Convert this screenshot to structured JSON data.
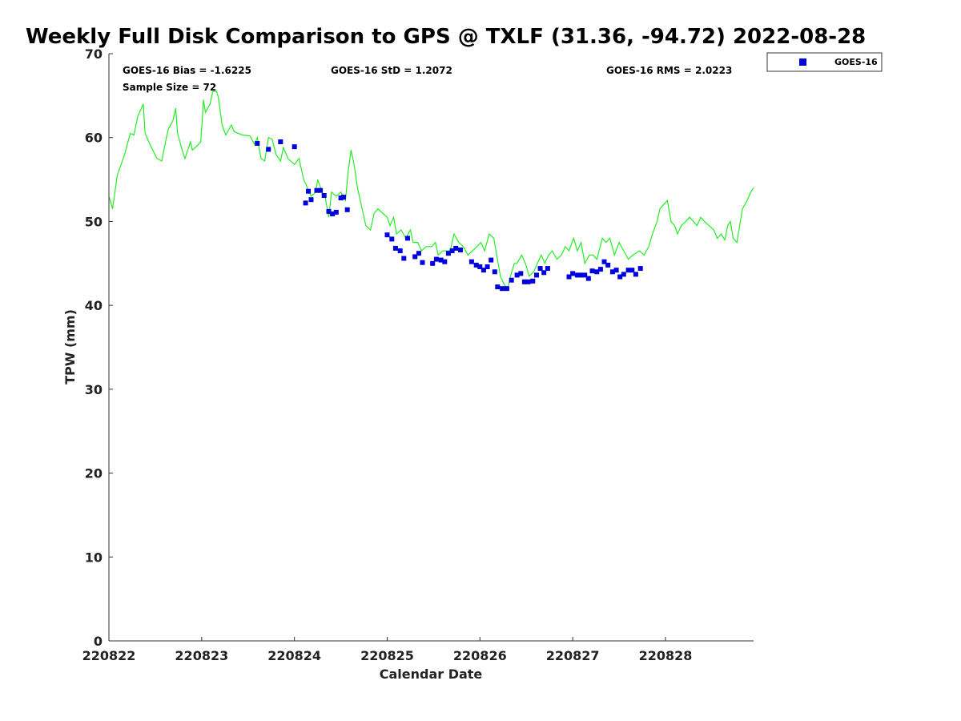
{
  "chart_data": {
    "type": "line+scatter",
    "title": "Weekly Full Disk Comparison to GPS @ TXLF (31.36, -94.72) 2022-08-28",
    "xlabel": "Calendar Date",
    "ylabel": "TPW (mm)",
    "xlim": [
      0,
      6.95
    ],
    "ylim": [
      0,
      70
    ],
    "x_ticks": [
      {
        "pos": 0,
        "label": "220822"
      },
      {
        "pos": 1,
        "label": "220823"
      },
      {
        "pos": 2,
        "label": "220824"
      },
      {
        "pos": 3,
        "label": "220825"
      },
      {
        "pos": 4,
        "label": "220826"
      },
      {
        "pos": 5,
        "label": "220827"
      },
      {
        "pos": 6,
        "label": "220828"
      }
    ],
    "y_ticks": [
      "0",
      "10",
      "20",
      "30",
      "40",
      "50",
      "60",
      "70"
    ],
    "grid": false,
    "legend_position": "outside-top-right",
    "stats": {
      "bias": "GOES-16 Bias = -1.6225",
      "std": "GOES-16 StD = 1.2072",
      "rms": "GOES-16 RMS = 2.0223",
      "sample": "Sample Size = 72"
    },
    "series": [
      {
        "kind": "line",
        "color": "#22ee22",
        "points": [
          [
            0.0,
            53.0
          ],
          [
            0.04,
            51.5
          ],
          [
            0.09,
            55.5
          ],
          [
            0.17,
            58.0
          ],
          [
            0.23,
            60.5
          ],
          [
            0.27,
            60.3
          ],
          [
            0.31,
            62.5
          ],
          [
            0.37,
            64.0
          ],
          [
            0.39,
            60.5
          ],
          [
            0.45,
            59.0
          ],
          [
            0.52,
            57.5
          ],
          [
            0.57,
            57.2
          ],
          [
            0.61,
            59.5
          ],
          [
            0.64,
            61.0
          ],
          [
            0.69,
            62.0
          ],
          [
            0.72,
            63.5
          ],
          [
            0.74,
            60.5
          ],
          [
            0.79,
            58.5
          ],
          [
            0.82,
            57.5
          ],
          [
            0.88,
            59.5
          ],
          [
            0.9,
            58.5
          ],
          [
            0.95,
            59.0
          ],
          [
            0.99,
            59.5
          ],
          [
            1.02,
            64.5
          ],
          [
            1.04,
            63.0
          ],
          [
            1.09,
            64.0
          ],
          [
            1.12,
            65.5
          ],
          [
            1.16,
            65.5
          ],
          [
            1.18,
            64.8
          ],
          [
            1.22,
            61.5
          ],
          [
            1.26,
            60.3
          ],
          [
            1.32,
            61.5
          ],
          [
            1.35,
            60.7
          ],
          [
            1.44,
            60.3
          ],
          [
            1.52,
            60.2
          ],
          [
            1.57,
            59.2
          ],
          [
            1.6,
            60.0
          ],
          [
            1.64,
            57.5
          ],
          [
            1.68,
            57.2
          ],
          [
            1.72,
            60.0
          ],
          [
            1.76,
            59.8
          ],
          [
            1.8,
            58.0
          ],
          [
            1.85,
            57.2
          ],
          [
            1.88,
            58.8
          ],
          [
            1.93,
            57.5
          ],
          [
            2.0,
            56.8
          ],
          [
            2.05,
            57.5
          ],
          [
            2.1,
            55.0
          ],
          [
            2.14,
            54.0
          ],
          [
            2.18,
            53.0
          ],
          [
            2.23,
            53.5
          ],
          [
            2.25,
            55.0
          ],
          [
            2.3,
            53.5
          ],
          [
            2.33,
            53.0
          ],
          [
            2.37,
            50.5
          ],
          [
            2.4,
            53.5
          ],
          [
            2.45,
            53.0
          ],
          [
            2.5,
            53.5
          ],
          [
            2.55,
            52.5
          ],
          [
            2.58,
            56.0
          ],
          [
            2.61,
            58.5
          ],
          [
            2.64,
            57.0
          ],
          [
            2.68,
            54.0
          ],
          [
            2.72,
            52.0
          ],
          [
            2.77,
            49.5
          ],
          [
            2.82,
            49.0
          ],
          [
            2.86,
            51.0
          ],
          [
            2.9,
            51.5
          ],
          [
            2.95,
            51.0
          ],
          [
            3.0,
            50.5
          ],
          [
            3.03,
            49.5
          ],
          [
            3.07,
            50.5
          ],
          [
            3.1,
            48.5
          ],
          [
            3.15,
            49.0
          ],
          [
            3.2,
            48.0
          ],
          [
            3.25,
            49.0
          ],
          [
            3.28,
            47.5
          ],
          [
            3.33,
            47.5
          ],
          [
            3.37,
            46.5
          ],
          [
            3.42,
            47.0
          ],
          [
            3.48,
            47.0
          ],
          [
            3.52,
            47.5
          ],
          [
            3.55,
            46.0
          ],
          [
            3.6,
            46.5
          ],
          [
            3.65,
            46.5
          ],
          [
            3.68,
            46.5
          ],
          [
            3.72,
            48.5
          ],
          [
            3.77,
            47.5
          ],
          [
            3.82,
            47.0
          ],
          [
            3.87,
            46.0
          ],
          [
            3.92,
            46.5
          ],
          [
            3.97,
            47.0
          ],
          [
            4.01,
            47.5
          ],
          [
            4.05,
            46.5
          ],
          [
            4.1,
            48.5
          ],
          [
            4.15,
            48.0
          ],
          [
            4.18,
            46.0
          ],
          [
            4.22,
            43.5
          ],
          [
            4.26,
            42.5
          ],
          [
            4.3,
            42.0
          ],
          [
            4.33,
            43.5
          ],
          [
            4.37,
            45.0
          ],
          [
            4.4,
            45.0
          ],
          [
            4.45,
            46.0
          ],
          [
            4.49,
            45.0
          ],
          [
            4.53,
            43.5
          ],
          [
            4.58,
            44.0
          ],
          [
            4.62,
            45.0
          ],
          [
            4.66,
            46.0
          ],
          [
            4.7,
            45.0
          ],
          [
            4.74,
            46.0
          ],
          [
            4.78,
            46.5
          ],
          [
            4.83,
            45.5
          ],
          [
            4.88,
            46.0
          ],
          [
            4.92,
            47.0
          ],
          [
            4.96,
            46.5
          ],
          [
            5.01,
            48.0
          ],
          [
            5.05,
            46.5
          ],
          [
            5.09,
            47.5
          ],
          [
            5.13,
            45.0
          ],
          [
            5.18,
            46.0
          ],
          [
            5.22,
            46.0
          ],
          [
            5.26,
            45.5
          ],
          [
            5.32,
            48.0
          ],
          [
            5.36,
            47.5
          ],
          [
            5.4,
            48.0
          ],
          [
            5.45,
            46.0
          ],
          [
            5.5,
            47.5
          ],
          [
            5.55,
            46.5
          ],
          [
            5.6,
            45.5
          ],
          [
            5.65,
            46.0
          ],
          [
            5.72,
            46.5
          ],
          [
            5.77,
            46.0
          ],
          [
            5.82,
            47.0
          ],
          [
            5.86,
            48.5
          ],
          [
            5.91,
            50.0
          ],
          [
            5.94,
            51.5
          ],
          [
            5.98,
            52.0
          ],
          [
            6.02,
            52.5
          ],
          [
            6.06,
            50.0
          ],
          [
            6.1,
            49.5
          ],
          [
            6.13,
            48.5
          ],
          [
            6.17,
            49.5
          ],
          [
            6.22,
            50.0
          ],
          [
            6.26,
            50.5
          ],
          [
            6.3,
            50.0
          ],
          [
            6.34,
            49.5
          ],
          [
            6.38,
            50.5
          ],
          [
            6.42,
            50.0
          ],
          [
            6.47,
            49.5
          ],
          [
            6.52,
            49.0
          ],
          [
            6.56,
            48.0
          ],
          [
            6.6,
            48.5
          ],
          [
            6.64,
            47.8
          ],
          [
            6.67,
            49.5
          ],
          [
            6.7,
            50.0
          ],
          [
            6.73,
            48.0
          ],
          [
            6.77,
            47.5
          ],
          [
            6.8,
            49.5
          ],
          [
            6.83,
            51.5
          ],
          [
            6.88,
            52.5
          ],
          [
            6.92,
            53.5
          ],
          [
            6.95,
            54.0
          ]
        ]
      },
      {
        "kind": "scatter",
        "name": "GOES-16",
        "color": "#0000dd",
        "points": [
          [
            1.6,
            59.3
          ],
          [
            1.72,
            58.6
          ],
          [
            1.85,
            59.5
          ],
          [
            2.0,
            58.9
          ],
          [
            2.12,
            52.2
          ],
          [
            2.15,
            53.6
          ],
          [
            2.18,
            52.6
          ],
          [
            2.24,
            53.7
          ],
          [
            2.28,
            53.7
          ],
          [
            2.32,
            53.1
          ],
          [
            2.37,
            51.2
          ],
          [
            2.41,
            50.9
          ],
          [
            2.45,
            51.1
          ],
          [
            2.5,
            52.8
          ],
          [
            2.53,
            52.9
          ],
          [
            2.57,
            51.4
          ],
          [
            3.0,
            48.4
          ],
          [
            3.05,
            47.9
          ],
          [
            3.09,
            46.8
          ],
          [
            3.14,
            46.5
          ],
          [
            3.18,
            45.6
          ],
          [
            3.22,
            48.0
          ],
          [
            3.3,
            45.8
          ],
          [
            3.34,
            46.2
          ],
          [
            3.38,
            45.1
          ],
          [
            3.49,
            45.0
          ],
          [
            3.53,
            45.5
          ],
          [
            3.58,
            45.4
          ],
          [
            3.62,
            45.2
          ],
          [
            3.66,
            46.2
          ],
          [
            3.7,
            46.5
          ],
          [
            3.74,
            46.8
          ],
          [
            3.79,
            46.6
          ],
          [
            3.91,
            45.2
          ],
          [
            3.96,
            44.8
          ],
          [
            4.0,
            44.6
          ],
          [
            4.04,
            44.2
          ],
          [
            4.08,
            44.6
          ],
          [
            4.12,
            45.4
          ],
          [
            4.16,
            44.0
          ],
          [
            4.19,
            42.2
          ],
          [
            4.24,
            42.0
          ],
          [
            4.29,
            42.0
          ],
          [
            4.34,
            43.0
          ],
          [
            4.4,
            43.6
          ],
          [
            4.44,
            43.8
          ],
          [
            4.48,
            42.8
          ],
          [
            4.52,
            42.8
          ],
          [
            4.57,
            42.9
          ],
          [
            4.61,
            43.6
          ],
          [
            4.65,
            44.4
          ],
          [
            4.69,
            43.9
          ],
          [
            4.73,
            44.4
          ],
          [
            4.96,
            43.4
          ],
          [
            5.0,
            43.8
          ],
          [
            5.05,
            43.6
          ],
          [
            5.09,
            43.6
          ],
          [
            5.13,
            43.6
          ],
          [
            5.17,
            43.2
          ],
          [
            5.21,
            44.1
          ],
          [
            5.26,
            44.0
          ],
          [
            5.3,
            44.3
          ],
          [
            5.34,
            45.2
          ],
          [
            5.38,
            44.8
          ],
          [
            5.43,
            44.0
          ],
          [
            5.47,
            44.2
          ],
          [
            5.51,
            43.4
          ],
          [
            5.55,
            43.7
          ],
          [
            5.6,
            44.2
          ],
          [
            5.64,
            44.2
          ],
          [
            5.68,
            43.7
          ],
          [
            5.73,
            44.4
          ]
        ]
      }
    ]
  }
}
